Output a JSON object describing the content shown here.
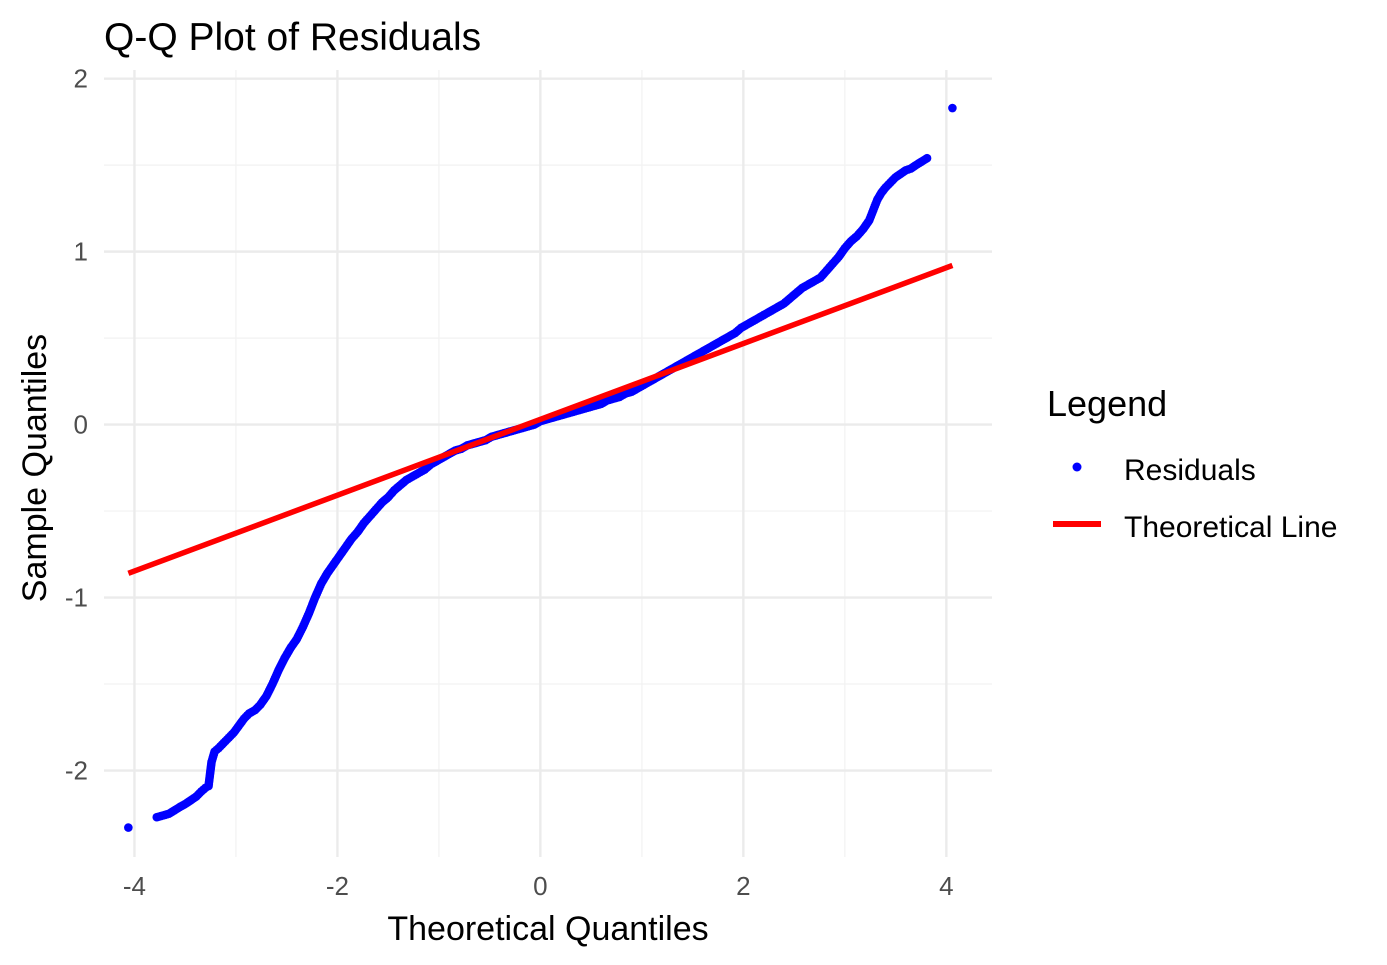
{
  "chart_data": {
    "type": "scatter",
    "title": "Q-Q Plot of Residuals",
    "xlabel": "Theoretical Quantiles",
    "ylabel": "Sample Quantiles",
    "xlim": [
      -4.3,
      4.45
    ],
    "ylim": [
      -2.5,
      2.05
    ],
    "x_ticks": [
      -4,
      -2,
      0,
      2,
      4
    ],
    "x_tick_labels": [
      "-4",
      "-2",
      "0",
      "2",
      "4"
    ],
    "y_ticks": [
      -2,
      -1,
      0,
      1,
      2
    ],
    "y_tick_labels": [
      "-2",
      "-1",
      "0",
      "1",
      "2"
    ],
    "x_minor_ticks": [
      -3,
      -1,
      1,
      3
    ],
    "y_minor_ticks": [
      -1.5,
      -0.5,
      0.5,
      1.5
    ],
    "grid": true,
    "legend": {
      "title": "Legend",
      "placement": "right",
      "items": [
        {
          "label": "Residuals",
          "kind": "point",
          "color": "#0000ff"
        },
        {
          "label": "Theoretical Line",
          "kind": "line",
          "color": "#ff0000"
        }
      ]
    },
    "series": [
      {
        "name": "Residuals",
        "kind": "points",
        "color": "#0000ff",
        "points": [
          [
            -4.06,
            -2.33
          ],
          [
            -3.78,
            -2.27
          ],
          [
            -3.66,
            -2.25
          ],
          [
            -3.55,
            -2.21
          ],
          [
            -3.49,
            -2.19
          ],
          [
            -3.44,
            -2.17
          ],
          [
            -3.39,
            -2.15
          ],
          [
            -3.34,
            -2.12
          ],
          [
            -3.3,
            -2.1
          ],
          [
            -3.27,
            -2.09
          ],
          [
            -3.24,
            -1.95
          ],
          [
            -3.21,
            -1.89
          ],
          [
            -3.17,
            -1.87
          ],
          [
            -3.12,
            -1.84
          ],
          [
            -3.07,
            -1.81
          ],
          [
            -3.02,
            -1.78
          ],
          [
            -2.97,
            -1.74
          ],
          [
            -2.92,
            -1.7
          ],
          [
            -2.87,
            -1.67
          ],
          [
            -2.81,
            -1.65
          ],
          [
            -2.76,
            -1.62
          ],
          [
            -2.7,
            -1.57
          ],
          [
            -2.64,
            -1.5
          ],
          [
            -2.58,
            -1.42
          ],
          [
            -2.52,
            -1.35
          ],
          [
            -2.46,
            -1.29
          ],
          [
            -2.4,
            -1.24
          ],
          [
            -2.34,
            -1.17
          ],
          [
            -2.28,
            -1.09
          ],
          [
            -2.22,
            -1.0
          ],
          [
            -2.16,
            -0.92
          ],
          [
            -2.1,
            -0.86
          ],
          [
            -2.04,
            -0.81
          ],
          [
            -1.98,
            -0.76
          ],
          [
            -1.92,
            -0.71
          ],
          [
            -1.86,
            -0.66
          ],
          [
            -1.8,
            -0.62
          ],
          [
            -1.74,
            -0.57
          ],
          [
            -1.68,
            -0.53
          ],
          [
            -1.62,
            -0.49
          ],
          [
            -1.56,
            -0.45
          ],
          [
            -1.5,
            -0.42
          ],
          [
            -1.44,
            -0.38
          ],
          [
            -1.38,
            -0.35
          ],
          [
            -1.32,
            -0.32
          ],
          [
            -1.26,
            -0.3
          ],
          [
            -1.2,
            -0.28
          ],
          [
            -1.14,
            -0.26
          ],
          [
            -1.08,
            -0.23
          ],
          [
            -1.02,
            -0.21
          ],
          [
            -0.96,
            -0.19
          ],
          [
            -0.9,
            -0.17
          ],
          [
            -0.84,
            -0.15
          ],
          [
            -0.78,
            -0.14
          ],
          [
            -0.72,
            -0.12
          ],
          [
            -0.66,
            -0.11
          ],
          [
            -0.6,
            -0.1
          ],
          [
            -0.54,
            -0.09
          ],
          [
            -0.48,
            -0.07
          ],
          [
            -0.42,
            -0.06
          ],
          [
            -0.36,
            -0.05
          ],
          [
            -0.3,
            -0.04
          ],
          [
            -0.24,
            -0.03
          ],
          [
            -0.18,
            -0.02
          ],
          [
            -0.12,
            -0.01
          ],
          [
            -0.06,
            0.0
          ],
          [
            0.0,
            0.02
          ],
          [
            0.06,
            0.03
          ],
          [
            0.12,
            0.04
          ],
          [
            0.18,
            0.05
          ],
          [
            0.24,
            0.06
          ],
          [
            0.3,
            0.07
          ],
          [
            0.36,
            0.08
          ],
          [
            0.42,
            0.09
          ],
          [
            0.48,
            0.1
          ],
          [
            0.54,
            0.11
          ],
          [
            0.6,
            0.12
          ],
          [
            0.66,
            0.14
          ],
          [
            0.72,
            0.15
          ],
          [
            0.78,
            0.16
          ],
          [
            0.84,
            0.18
          ],
          [
            0.9,
            0.19
          ],
          [
            0.96,
            0.21
          ],
          [
            1.02,
            0.23
          ],
          [
            1.08,
            0.25
          ],
          [
            1.14,
            0.27
          ],
          [
            1.2,
            0.29
          ],
          [
            1.26,
            0.31
          ],
          [
            1.32,
            0.33
          ],
          [
            1.38,
            0.35
          ],
          [
            1.44,
            0.37
          ],
          [
            1.5,
            0.39
          ],
          [
            1.56,
            0.41
          ],
          [
            1.62,
            0.43
          ],
          [
            1.68,
            0.45
          ],
          [
            1.74,
            0.47
          ],
          [
            1.8,
            0.49
          ],
          [
            1.86,
            0.51
          ],
          [
            1.92,
            0.53
          ],
          [
            1.98,
            0.56
          ],
          [
            2.04,
            0.58
          ],
          [
            2.1,
            0.6
          ],
          [
            2.16,
            0.62
          ],
          [
            2.22,
            0.64
          ],
          [
            2.28,
            0.66
          ],
          [
            2.34,
            0.68
          ],
          [
            2.4,
            0.7
          ],
          [
            2.46,
            0.73
          ],
          [
            2.52,
            0.76
          ],
          [
            2.58,
            0.79
          ],
          [
            2.64,
            0.81
          ],
          [
            2.7,
            0.83
          ],
          [
            2.76,
            0.85
          ],
          [
            2.82,
            0.89
          ],
          [
            2.88,
            0.93
          ],
          [
            2.94,
            0.97
          ],
          [
            3.0,
            1.02
          ],
          [
            3.06,
            1.06
          ],
          [
            3.12,
            1.09
          ],
          [
            3.18,
            1.13
          ],
          [
            3.24,
            1.18
          ],
          [
            3.28,
            1.24
          ],
          [
            3.32,
            1.3
          ],
          [
            3.36,
            1.34
          ],
          [
            3.4,
            1.37
          ],
          [
            3.45,
            1.4
          ],
          [
            3.5,
            1.43
          ],
          [
            3.55,
            1.45
          ],
          [
            3.6,
            1.47
          ],
          [
            3.65,
            1.48
          ],
          [
            3.7,
            1.5
          ],
          [
            3.81,
            1.54
          ],
          [
            4.06,
            1.83
          ]
        ]
      },
      {
        "name": "Theoretical Line",
        "kind": "line",
        "color": "#ff0000",
        "points": [
          [
            -4.06,
            -0.86
          ],
          [
            4.06,
            0.92
          ]
        ]
      }
    ]
  }
}
